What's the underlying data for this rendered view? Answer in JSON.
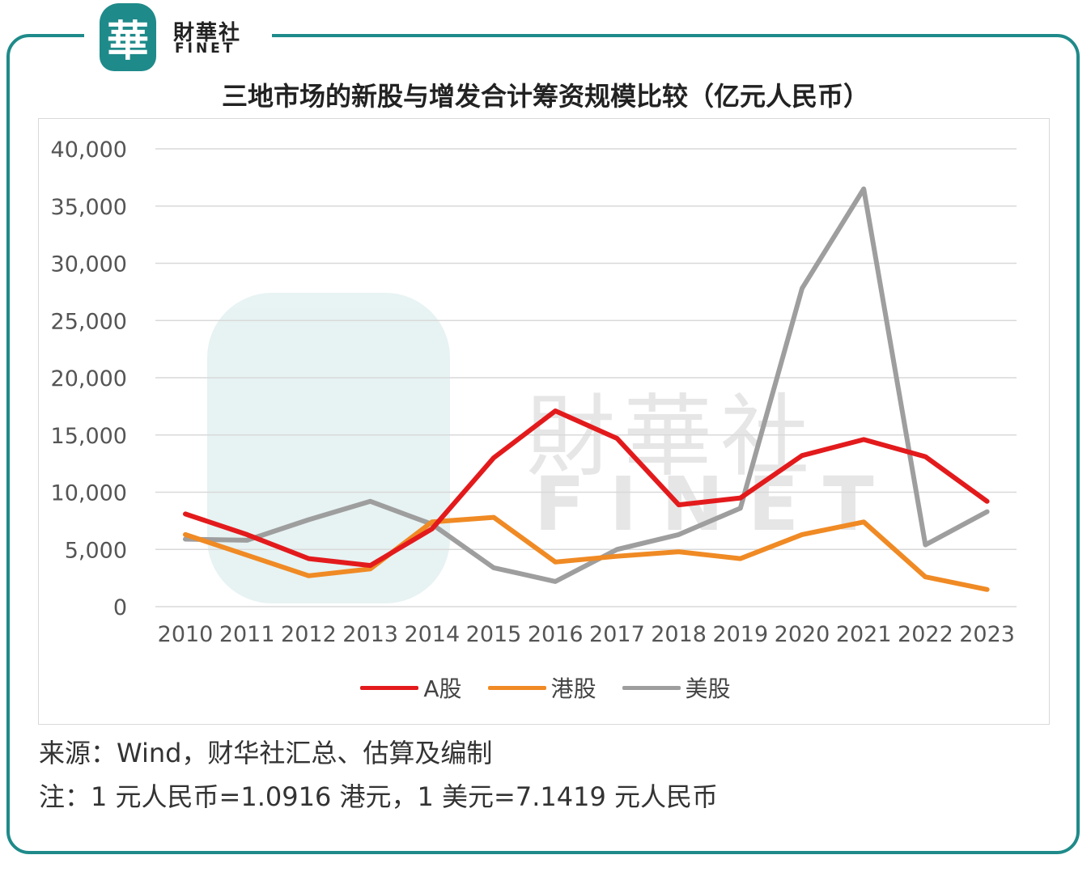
{
  "logo": {
    "badge_char": "華",
    "name_cn": "財華社",
    "name_en": "FINET",
    "color": "#1f8a8a"
  },
  "watermark": {
    "badge_char": "華",
    "name_cn": "財華社",
    "name_en": "FINET"
  },
  "chart_data": {
    "type": "line",
    "title": "三地市场的新股与增发合计筹资规模比较（亿元人民币）",
    "xlabel": "",
    "ylabel": "",
    "x": [
      "2010",
      "2011",
      "2012",
      "2013",
      "2014",
      "2015",
      "2016",
      "2017",
      "2018",
      "2019",
      "2020",
      "2021",
      "2022",
      "2023"
    ],
    "ylim": [
      0,
      40000
    ],
    "yticks": [
      0,
      5000,
      10000,
      15000,
      20000,
      25000,
      30000,
      35000,
      40000
    ],
    "ytick_labels": [
      "0",
      "5,000",
      "10,000",
      "15,000",
      "20,000",
      "25,000",
      "30,000",
      "35,000",
      "40,000"
    ],
    "grid": true,
    "legend_position": "bottom",
    "series": [
      {
        "name": "A股",
        "color": "#e31a1c",
        "values": [
          8100,
          6300,
          4200,
          3600,
          6800,
          13000,
          17100,
          14700,
          8900,
          9500,
          13200,
          14600,
          13100,
          9200
        ]
      },
      {
        "name": "港股",
        "color": "#f08a24",
        "values": [
          6300,
          4500,
          2700,
          3300,
          7400,
          7800,
          3900,
          4400,
          4800,
          4200,
          6300,
          7400,
          2600,
          1500
        ]
      },
      {
        "name": "美股",
        "color": "#9e9e9e",
        "values": [
          5900,
          5800,
          7600,
          9200,
          7200,
          3400,
          2200,
          5000,
          6300,
          8600,
          27800,
          36500,
          5400,
          8300
        ]
      }
    ]
  },
  "footnotes": {
    "source": "来源：Wind，财华社汇总、估算及编制",
    "note": "注：1 元人民币=1.0916 港元，1 美元=7.1419 元人民币"
  }
}
